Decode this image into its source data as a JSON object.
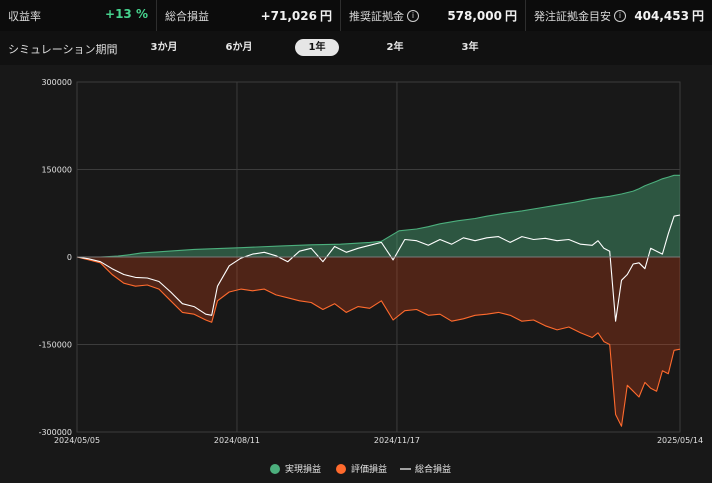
{
  "stats": [
    {
      "label": "収益率",
      "value": "+13 %",
      "unit": "",
      "info": false,
      "positive": true
    },
    {
      "label": "総合損益",
      "value": "+71,026",
      "unit": "円",
      "info": false,
      "positive": false
    },
    {
      "label": "推奨証拠金",
      "value": "578,000",
      "unit": "円",
      "info": true,
      "positive": false
    },
    {
      "label": "発注証拠金目安",
      "value": "404,453",
      "unit": "円",
      "info": true,
      "positive": false
    }
  ],
  "simulation": {
    "label": "シミュレーション期間",
    "options": [
      "3か月",
      "6か月",
      "1年",
      "2年",
      "3年"
    ],
    "selected": "1年"
  },
  "chart_data": {
    "type": "area",
    "x_start": "2024-05-05",
    "x_end": "2025-05-14",
    "x_tick_labels": [
      "2024/05/05",
      "2024/08/11",
      "2024/11/17",
      "2025/05/14"
    ],
    "y_tick_labels": [
      "300000",
      "150000",
      "0",
      "-150000",
      "-300000"
    ],
    "ylim": [
      -300000,
      300000
    ],
    "grid": true,
    "legend_position": "bottom",
    "series": [
      {
        "name": "実現損益",
        "color": "#4caf7d",
        "kind": "area",
        "points": [
          [
            0,
            0
          ],
          [
            4,
            0
          ],
          [
            7,
            1500
          ],
          [
            9,
            4000
          ],
          [
            11,
            7000
          ],
          [
            14,
            9000
          ],
          [
            20,
            13000
          ],
          [
            28,
            16000
          ],
          [
            35,
            19000
          ],
          [
            40,
            21000
          ],
          [
            45,
            22000
          ],
          [
            50,
            25000
          ],
          [
            52,
            27000
          ],
          [
            55,
            45000
          ],
          [
            58,
            48000
          ],
          [
            60,
            52000
          ],
          [
            62,
            57000
          ],
          [
            65,
            62000
          ],
          [
            68,
            66000
          ],
          [
            70,
            70000
          ],
          [
            73,
            75000
          ],
          [
            76,
            79000
          ],
          [
            79,
            84000
          ],
          [
            82,
            89000
          ],
          [
            85,
            94000
          ],
          [
            88,
            100000
          ],
          [
            91,
            104000
          ],
          [
            93,
            108000
          ],
          [
            95,
            113000
          ],
          [
            96,
            117000
          ],
          [
            97,
            122000
          ],
          [
            98,
            126000
          ],
          [
            99,
            130000
          ],
          [
            100,
            134000
          ],
          [
            101,
            137000
          ],
          [
            102,
            140000
          ],
          [
            103,
            140000
          ]
        ]
      },
      {
        "name": "評価損益",
        "color": "#ff6a2d",
        "kind": "area",
        "points": [
          [
            0,
            0
          ],
          [
            2,
            -5000
          ],
          [
            4,
            -10000
          ],
          [
            6,
            -30000
          ],
          [
            8,
            -45000
          ],
          [
            10,
            -50000
          ],
          [
            12,
            -48000
          ],
          [
            14,
            -55000
          ],
          [
            16,
            -75000
          ],
          [
            18,
            -95000
          ],
          [
            20,
            -98000
          ],
          [
            22,
            -108000
          ],
          [
            23,
            -112000
          ],
          [
            24,
            -75000
          ],
          [
            26,
            -60000
          ],
          [
            28,
            -55000
          ],
          [
            30,
            -58000
          ],
          [
            32,
            -55000
          ],
          [
            34,
            -65000
          ],
          [
            36,
            -70000
          ],
          [
            38,
            -75000
          ],
          [
            40,
            -78000
          ],
          [
            42,
            -90000
          ],
          [
            44,
            -80000
          ],
          [
            46,
            -95000
          ],
          [
            48,
            -85000
          ],
          [
            50,
            -88000
          ],
          [
            52,
            -75000
          ],
          [
            54,
            -108000
          ],
          [
            56,
            -92000
          ],
          [
            58,
            -90000
          ],
          [
            60,
            -100000
          ],
          [
            62,
            -98000
          ],
          [
            64,
            -110000
          ],
          [
            66,
            -106000
          ],
          [
            68,
            -100000
          ],
          [
            70,
            -98000
          ],
          [
            72,
            -95000
          ],
          [
            74,
            -100000
          ],
          [
            76,
            -110000
          ],
          [
            78,
            -108000
          ],
          [
            80,
            -118000
          ],
          [
            82,
            -125000
          ],
          [
            84,
            -120000
          ],
          [
            86,
            -130000
          ],
          [
            88,
            -138000
          ],
          [
            89,
            -130000
          ],
          [
            90,
            -145000
          ],
          [
            91,
            -150000
          ],
          [
            92,
            -270000
          ],
          [
            93,
            -290000
          ],
          [
            94,
            -220000
          ],
          [
            95,
            -230000
          ],
          [
            96,
            -240000
          ],
          [
            97,
            -215000
          ],
          [
            98,
            -225000
          ],
          [
            99,
            -230000
          ],
          [
            100,
            -195000
          ],
          [
            101,
            -200000
          ],
          [
            102,
            -160000
          ],
          [
            103,
            -158000
          ]
        ]
      },
      {
        "name": "総合損益",
        "color": "#ffffff",
        "kind": "line",
        "points": [
          [
            0,
            0
          ],
          [
            2,
            -3000
          ],
          [
            4,
            -8000
          ],
          [
            6,
            -20000
          ],
          [
            8,
            -30000
          ],
          [
            10,
            -35000
          ],
          [
            12,
            -36000
          ],
          [
            14,
            -42000
          ],
          [
            16,
            -60000
          ],
          [
            18,
            -80000
          ],
          [
            20,
            -85000
          ],
          [
            22,
            -98000
          ],
          [
            23,
            -100000
          ],
          [
            24,
            -50000
          ],
          [
            26,
            -15000
          ],
          [
            28,
            -2000
          ],
          [
            30,
            5000
          ],
          [
            32,
            8000
          ],
          [
            34,
            2000
          ],
          [
            36,
            -8000
          ],
          [
            38,
            10000
          ],
          [
            40,
            15000
          ],
          [
            42,
            -8000
          ],
          [
            44,
            18000
          ],
          [
            46,
            8000
          ],
          [
            48,
            15000
          ],
          [
            50,
            20000
          ],
          [
            52,
            25000
          ],
          [
            54,
            -5000
          ],
          [
            56,
            30000
          ],
          [
            58,
            28000
          ],
          [
            60,
            20000
          ],
          [
            62,
            30000
          ],
          [
            64,
            22000
          ],
          [
            66,
            33000
          ],
          [
            68,
            28000
          ],
          [
            70,
            33000
          ],
          [
            72,
            35000
          ],
          [
            74,
            25000
          ],
          [
            76,
            35000
          ],
          [
            78,
            30000
          ],
          [
            80,
            32000
          ],
          [
            82,
            28000
          ],
          [
            84,
            30000
          ],
          [
            86,
            22000
          ],
          [
            88,
            20000
          ],
          [
            89,
            28000
          ],
          [
            90,
            15000
          ],
          [
            91,
            10000
          ],
          [
            92,
            -110000
          ],
          [
            93,
            -40000
          ],
          [
            94,
            -30000
          ],
          [
            95,
            -12000
          ],
          [
            96,
            -10000
          ],
          [
            97,
            -20000
          ],
          [
            98,
            15000
          ],
          [
            99,
            10000
          ],
          [
            100,
            5000
          ],
          [
            101,
            40000
          ],
          [
            102,
            70000
          ],
          [
            103,
            72000
          ]
        ]
      }
    ]
  }
}
